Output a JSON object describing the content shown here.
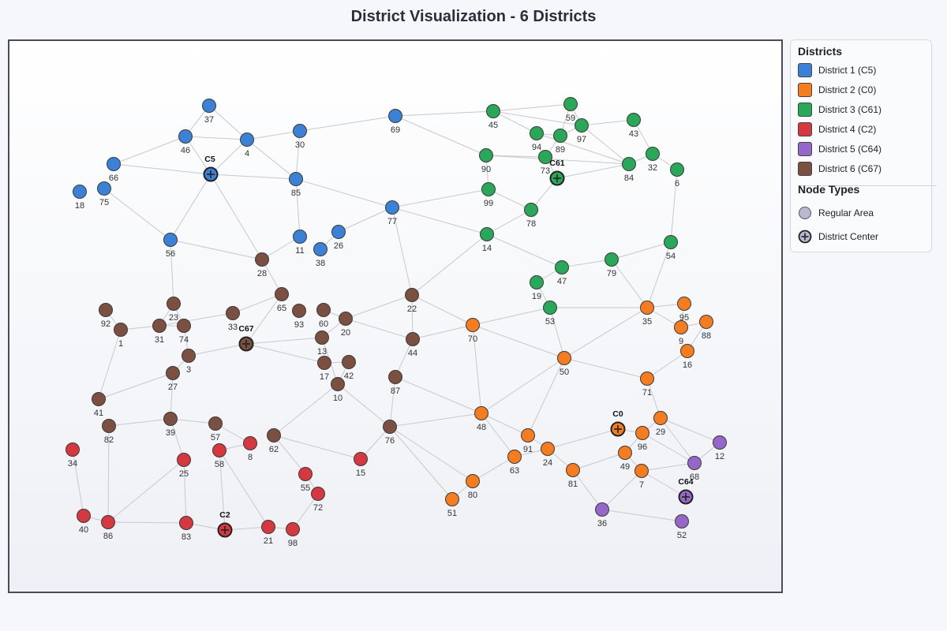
{
  "title": "District Visualization - 6 Districts",
  "legend": {
    "districts_heading": "Districts",
    "districts": [
      {
        "label": "District 1 (C5)",
        "color": "#3b82d6"
      },
      {
        "label": "District 2 (C0)",
        "color": "#f57c1f"
      },
      {
        "label": "District 3 (C61)",
        "color": "#28a858"
      },
      {
        "label": "District 4 (C2)",
        "color": "#d63840"
      },
      {
        "label": "District 5 (C64)",
        "color": "#9467c8"
      },
      {
        "label": "District 6 (C67)",
        "color": "#7b5040"
      }
    ],
    "node_types_heading": "Node Types",
    "node_types": [
      {
        "label": "Regular Area",
        "icon": "regular-node-icon",
        "color": "#b7b9d0"
      },
      {
        "label": "District Center",
        "icon": "district-center-icon",
        "color": "#b7b9d0"
      }
    ]
  },
  "diagram": {
    "district_colors": [
      "#3b82d6",
      "#f57c1f",
      "#28a858",
      "#d63840",
      "#9467c8",
      "#7b5040"
    ],
    "nodes": [
      {
        "id": "37",
        "district": 1
      },
      {
        "id": "46",
        "district": 1
      },
      {
        "id": "4",
        "district": 1
      },
      {
        "id": "30",
        "district": 1
      },
      {
        "id": "69",
        "district": 1
      },
      {
        "id": "66",
        "district": 1
      },
      {
        "id": "C5",
        "district": 1,
        "center": true
      },
      {
        "id": "85",
        "district": 1
      },
      {
        "id": "18",
        "district": 1
      },
      {
        "id": "75",
        "district": 1
      },
      {
        "id": "77",
        "district": 1
      },
      {
        "id": "56",
        "district": 1
      },
      {
        "id": "11",
        "district": 1
      },
      {
        "id": "26",
        "district": 1
      },
      {
        "id": "38",
        "district": 1
      },
      {
        "id": "45",
        "district": 3
      },
      {
        "id": "59",
        "district": 3
      },
      {
        "id": "94",
        "district": 3
      },
      {
        "id": "89",
        "district": 3
      },
      {
        "id": "97",
        "district": 3
      },
      {
        "id": "43",
        "district": 3
      },
      {
        "id": "90",
        "district": 3
      },
      {
        "id": "73",
        "district": 3
      },
      {
        "id": "C61",
        "district": 3,
        "center": true
      },
      {
        "id": "84",
        "district": 3
      },
      {
        "id": "32",
        "district": 3
      },
      {
        "id": "6",
        "district": 3
      },
      {
        "id": "99",
        "district": 3
      },
      {
        "id": "78",
        "district": 3
      },
      {
        "id": "14",
        "district": 3
      },
      {
        "id": "54",
        "district": 3
      },
      {
        "id": "47",
        "district": 3
      },
      {
        "id": "79",
        "district": 3
      },
      {
        "id": "19",
        "district": 3
      },
      {
        "id": "53",
        "district": 3
      },
      {
        "id": "35",
        "district": 2
      },
      {
        "id": "95",
        "district": 2
      },
      {
        "id": "88",
        "district": 2
      },
      {
        "id": "9",
        "district": 2
      },
      {
        "id": "16",
        "district": 2
      },
      {
        "id": "70",
        "district": 2
      },
      {
        "id": "50",
        "district": 2
      },
      {
        "id": "71",
        "district": 2
      },
      {
        "id": "29",
        "district": 2
      },
      {
        "id": "C0",
        "district": 2,
        "center": true
      },
      {
        "id": "96",
        "district": 2
      },
      {
        "id": "48",
        "district": 2
      },
      {
        "id": "91",
        "district": 2
      },
      {
        "id": "24",
        "district": 2
      },
      {
        "id": "63",
        "district": 2
      },
      {
        "id": "49",
        "district": 2
      },
      {
        "id": "81",
        "district": 2
      },
      {
        "id": "7",
        "district": 2
      },
      {
        "id": "80",
        "district": 2
      },
      {
        "id": "51",
        "district": 2
      },
      {
        "id": "12",
        "district": 5
      },
      {
        "id": "68",
        "district": 5
      },
      {
        "id": "C64",
        "district": 5,
        "center": true
      },
      {
        "id": "36",
        "district": 5
      },
      {
        "id": "52",
        "district": 5
      },
      {
        "id": "28",
        "district": 6
      },
      {
        "id": "22",
        "district": 6
      },
      {
        "id": "65",
        "district": 6
      },
      {
        "id": "92",
        "district": 6
      },
      {
        "id": "23",
        "district": 6
      },
      {
        "id": "1",
        "district": 6
      },
      {
        "id": "31",
        "district": 6
      },
      {
        "id": "74",
        "district": 6
      },
      {
        "id": "33",
        "district": 6
      },
      {
        "id": "93",
        "district": 6
      },
      {
        "id": "60",
        "district": 6
      },
      {
        "id": "20",
        "district": 6
      },
      {
        "id": "C67",
        "district": 6,
        "center": true
      },
      {
        "id": "13",
        "district": 6
      },
      {
        "id": "44",
        "district": 6
      },
      {
        "id": "3",
        "district": 6
      },
      {
        "id": "17",
        "district": 6
      },
      {
        "id": "42",
        "district": 6
      },
      {
        "id": "27",
        "district": 6
      },
      {
        "id": "87",
        "district": 6
      },
      {
        "id": "10",
        "district": 6
      },
      {
        "id": "41",
        "district": 6
      },
      {
        "id": "39",
        "district": 6
      },
      {
        "id": "57",
        "district": 6
      },
      {
        "id": "82",
        "district": 6
      },
      {
        "id": "62",
        "district": 6
      },
      {
        "id": "76",
        "district": 6
      },
      {
        "id": "34",
        "district": 4
      },
      {
        "id": "8",
        "district": 4
      },
      {
        "id": "25",
        "district": 4
      },
      {
        "id": "58",
        "district": 4
      },
      {
        "id": "15",
        "district": 4
      },
      {
        "id": "55",
        "district": 4
      },
      {
        "id": "72",
        "district": 4
      },
      {
        "id": "40",
        "district": 4
      },
      {
        "id": "86",
        "district": 4
      },
      {
        "id": "83",
        "district": 4
      },
      {
        "id": "C2",
        "district": 4,
        "center": true
      },
      {
        "id": "21",
        "district": 4
      },
      {
        "id": "98",
        "district": 4
      }
    ],
    "edges": [
      [
        "37",
        "46"
      ],
      [
        "37",
        "4"
      ],
      [
        "46",
        "4"
      ],
      [
        "46",
        "66"
      ],
      [
        "46",
        "C5"
      ],
      [
        "4",
        "C5"
      ],
      [
        "4",
        "30"
      ],
      [
        "4",
        "85"
      ],
      [
        "30",
        "85"
      ],
      [
        "30",
        "69"
      ],
      [
        "66",
        "C5"
      ],
      [
        "C5",
        "85"
      ],
      [
        "C5",
        "56"
      ],
      [
        "C5",
        "28"
      ],
      [
        "75",
        "56"
      ],
      [
        "85",
        "11"
      ],
      [
        "85",
        "77"
      ],
      [
        "77",
        "26"
      ],
      [
        "77",
        "99"
      ],
      [
        "77",
        "14"
      ],
      [
        "77",
        "22"
      ],
      [
        "26",
        "38"
      ],
      [
        "11",
        "28"
      ],
      [
        "56",
        "28"
      ],
      [
        "56",
        "23"
      ],
      [
        "69",
        "45"
      ],
      [
        "69",
        "90"
      ],
      [
        "45",
        "59"
      ],
      [
        "45",
        "94"
      ],
      [
        "45",
        "97"
      ],
      [
        "59",
        "89"
      ],
      [
        "59",
        "97"
      ],
      [
        "94",
        "89"
      ],
      [
        "94",
        "84"
      ],
      [
        "89",
        "97"
      ],
      [
        "89",
        "73"
      ],
      [
        "97",
        "43"
      ],
      [
        "97",
        "84"
      ],
      [
        "43",
        "32"
      ],
      [
        "90",
        "73"
      ],
      [
        "90",
        "84"
      ],
      [
        "90",
        "99"
      ],
      [
        "73",
        "C61"
      ],
      [
        "C61",
        "84"
      ],
      [
        "C61",
        "78"
      ],
      [
        "84",
        "32"
      ],
      [
        "32",
        "6"
      ],
      [
        "6",
        "54"
      ],
      [
        "99",
        "78"
      ],
      [
        "78",
        "14"
      ],
      [
        "14",
        "47"
      ],
      [
        "14",
        "22"
      ],
      [
        "47",
        "79"
      ],
      [
        "47",
        "19"
      ],
      [
        "79",
        "54"
      ],
      [
        "79",
        "35"
      ],
      [
        "54",
        "35"
      ],
      [
        "19",
        "53"
      ],
      [
        "53",
        "70"
      ],
      [
        "53",
        "35"
      ],
      [
        "53",
        "50"
      ],
      [
        "35",
        "95"
      ],
      [
        "35",
        "9"
      ],
      [
        "35",
        "50"
      ],
      [
        "95",
        "9"
      ],
      [
        "88",
        "9"
      ],
      [
        "88",
        "16"
      ],
      [
        "16",
        "71"
      ],
      [
        "70",
        "50"
      ],
      [
        "70",
        "48"
      ],
      [
        "70",
        "22"
      ],
      [
        "50",
        "71"
      ],
      [
        "50",
        "48"
      ],
      [
        "50",
        "91"
      ],
      [
        "71",
        "29"
      ],
      [
        "29",
        "96"
      ],
      [
        "29",
        "68"
      ],
      [
        "29",
        "12"
      ],
      [
        "C0",
        "96"
      ],
      [
        "C0",
        "24"
      ],
      [
        "96",
        "49"
      ],
      [
        "96",
        "68"
      ],
      [
        "48",
        "91"
      ],
      [
        "48",
        "63"
      ],
      [
        "48",
        "76"
      ],
      [
        "48",
        "87"
      ],
      [
        "91",
        "24"
      ],
      [
        "24",
        "81"
      ],
      [
        "24",
        "63"
      ],
      [
        "63",
        "80"
      ],
      [
        "49",
        "81"
      ],
      [
        "49",
        "7"
      ],
      [
        "81",
        "36"
      ],
      [
        "7",
        "36"
      ],
      [
        "7",
        "68"
      ],
      [
        "7",
        "C64"
      ],
      [
        "68",
        "12"
      ],
      [
        "80",
        "51"
      ],
      [
        "80",
        "76"
      ],
      [
        "36",
        "52"
      ],
      [
        "28",
        "65"
      ],
      [
        "65",
        "33"
      ],
      [
        "65",
        "C67"
      ],
      [
        "22",
        "20"
      ],
      [
        "22",
        "44"
      ],
      [
        "92",
        "1"
      ],
      [
        "1",
        "31"
      ],
      [
        "1",
        "41"
      ],
      [
        "23",
        "74"
      ],
      [
        "23",
        "31"
      ],
      [
        "31",
        "74"
      ],
      [
        "31",
        "33"
      ],
      [
        "74",
        "3"
      ],
      [
        "C67",
        "3"
      ],
      [
        "C67",
        "13"
      ],
      [
        "C67",
        "17"
      ],
      [
        "20",
        "60"
      ],
      [
        "20",
        "13"
      ],
      [
        "20",
        "44"
      ],
      [
        "44",
        "70"
      ],
      [
        "44",
        "87"
      ],
      [
        "13",
        "10"
      ],
      [
        "17",
        "42"
      ],
      [
        "42",
        "10"
      ],
      [
        "10",
        "76"
      ],
      [
        "10",
        "62"
      ],
      [
        "3",
        "27"
      ],
      [
        "27",
        "41"
      ],
      [
        "27",
        "39"
      ],
      [
        "87",
        "76"
      ],
      [
        "39",
        "82"
      ],
      [
        "39",
        "57"
      ],
      [
        "39",
        "25"
      ],
      [
        "57",
        "8"
      ],
      [
        "82",
        "86"
      ],
      [
        "62",
        "55"
      ],
      [
        "62",
        "15"
      ],
      [
        "76",
        "51"
      ],
      [
        "34",
        "40"
      ],
      [
        "40",
        "86"
      ],
      [
        "86",
        "83"
      ],
      [
        "86",
        "25"
      ],
      [
        "25",
        "83"
      ],
      [
        "58",
        "8"
      ],
      [
        "58",
        "C2"
      ],
      [
        "58",
        "21"
      ],
      [
        "83",
        "C2"
      ],
      [
        "C2",
        "21"
      ],
      [
        "21",
        "98"
      ],
      [
        "98",
        "72"
      ],
      [
        "55",
        "72"
      ],
      [
        "15",
        "76"
      ]
    ]
  }
}
